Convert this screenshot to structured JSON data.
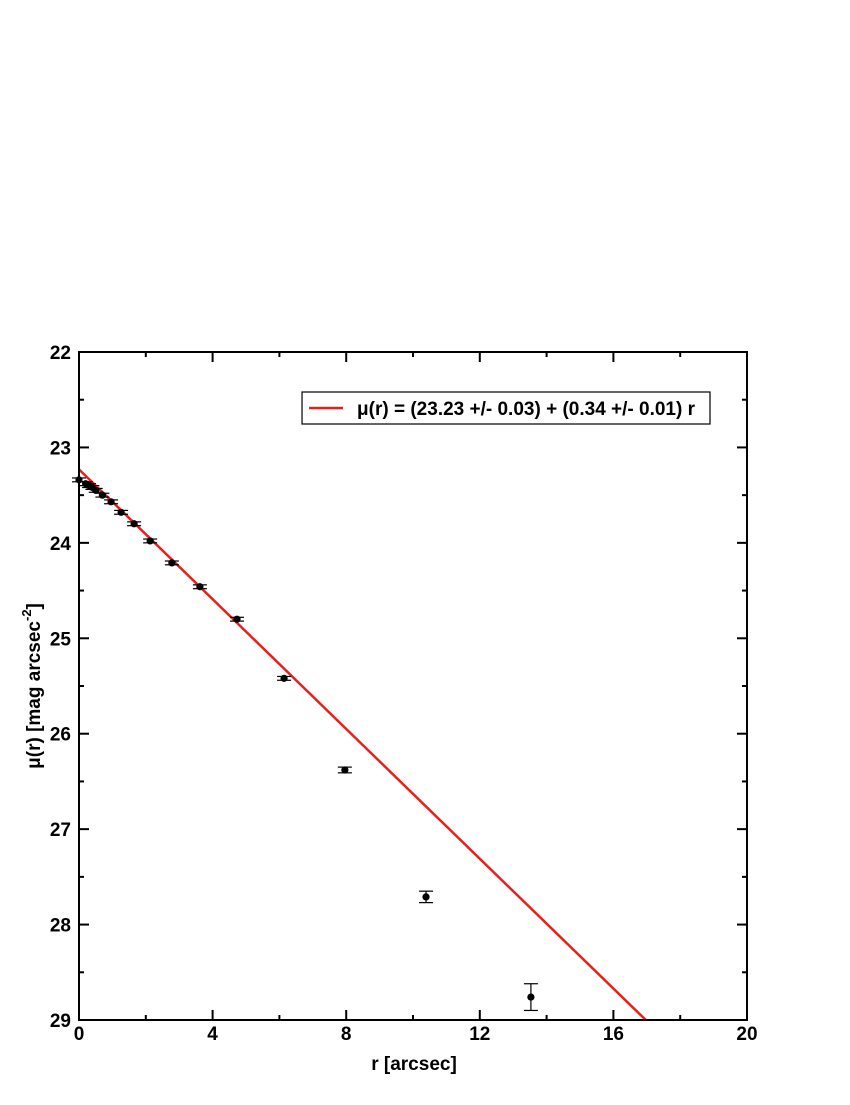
{
  "chart_data": {
    "type": "scatter",
    "x": [
      0,
      0.2,
      0.3,
      0.4,
      0.5,
      0.7,
      0.96,
      1.26,
      1.65,
      2.13,
      2.78,
      3.62,
      4.73,
      6.14,
      7.96,
      10.39,
      13.53
    ],
    "values": [
      23.34,
      23.38,
      23.4,
      23.42,
      23.45,
      23.5,
      23.57,
      23.68,
      23.8,
      23.98,
      24.21,
      24.46,
      24.8,
      25.42,
      26.38,
      27.71,
      28.76
    ],
    "yerr": [
      0.02,
      0.02,
      0.02,
      0.02,
      0.02,
      0.02,
      0.02,
      0.02,
      0.02,
      0.02,
      0.02,
      0.02,
      0.02,
      0.02,
      0.03,
      0.06,
      0.14
    ],
    "color": "#000000",
    "fit": {
      "name": "μ(r) = (23.23 +/- 0.03) + (0.34 +/- 0.01) r",
      "color": "#e8201c",
      "intercept": 23.23,
      "slope": 0.34
    },
    "xlabel": "r [arcsec]",
    "ylabel": "μ(r) [mag arcsec",
    "ylabel_sup": "-2",
    "ylabel_end": "]",
    "xlim": [
      0,
      20
    ],
    "ylim": [
      22,
      29
    ],
    "y_inverted": true,
    "xticks": [
      0,
      4,
      8,
      12,
      16,
      20
    ],
    "yticks": [
      22,
      23,
      24,
      25,
      26,
      27,
      28,
      29
    ],
    "xminorticks": [
      2,
      6,
      10,
      14,
      18
    ],
    "yminorticks": [
      22.5,
      23.5,
      24.5,
      25.5,
      26.5,
      27.5,
      28.5
    ],
    "legend_position": "upper right"
  }
}
